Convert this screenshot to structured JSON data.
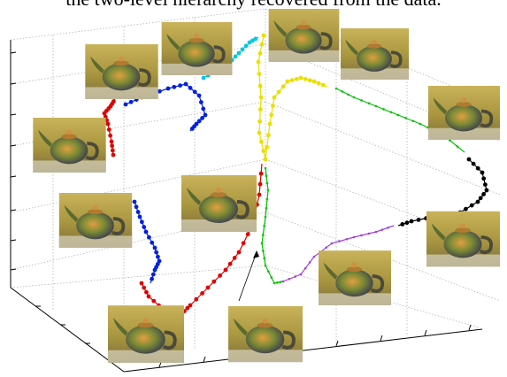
{
  "figure": {
    "caption": "the two-level hierarchy recovered from the data."
  }
}
